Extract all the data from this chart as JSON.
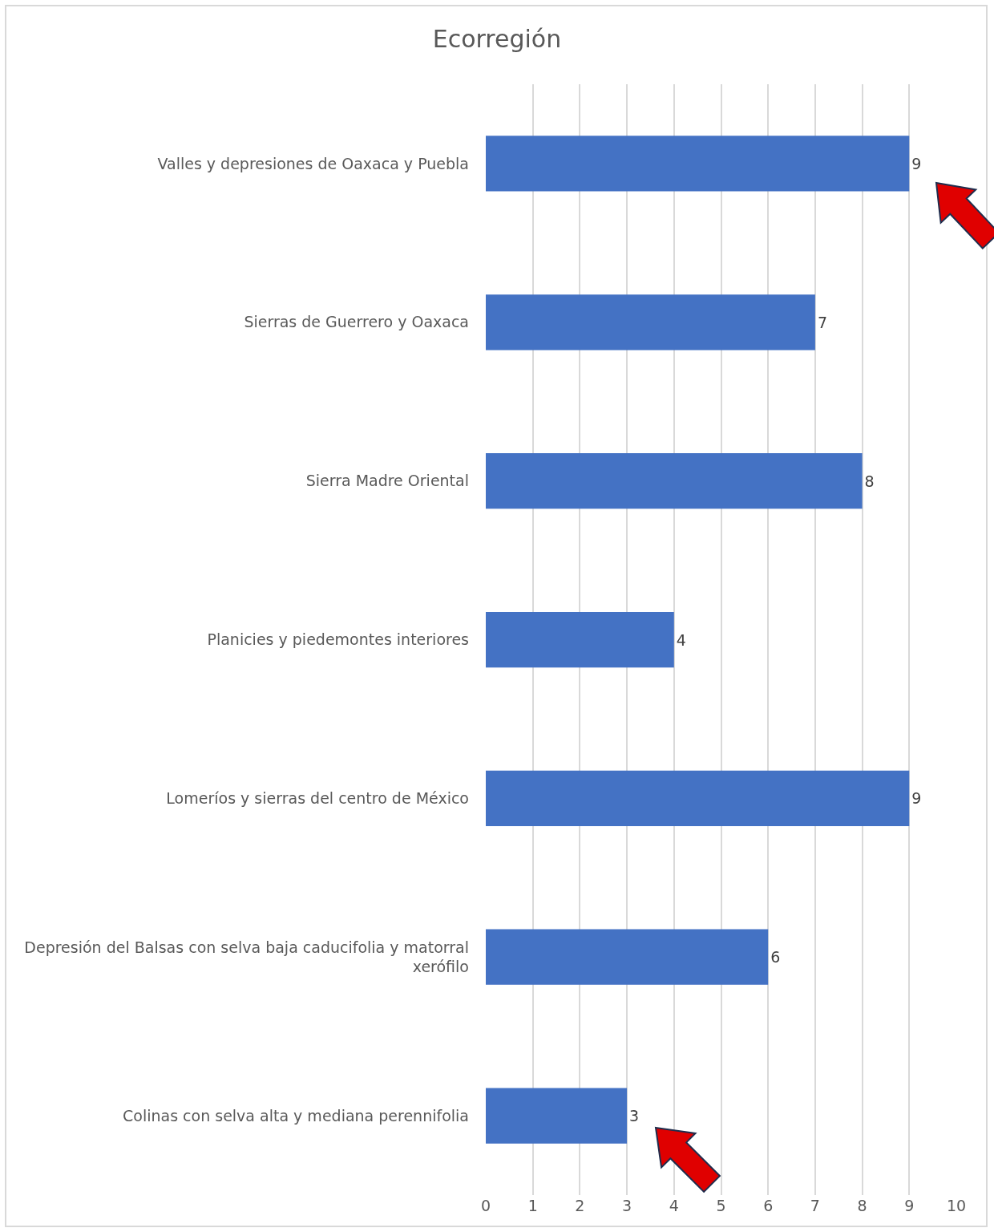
{
  "chart_data": {
    "type": "bar",
    "title": "Ecorregión",
    "orientation": "horizontal",
    "categories": [
      "Valles y depresiones de Oaxaca y Puebla",
      "Sierras de Guerrero y Oaxaca",
      "Sierra Madre Oriental",
      "Planicies y piedemontes interiores",
      "Lomeríos y sierras del centro de México",
      "Depresión del Balsas con selva baja caducifolia y matorral xerófilo",
      "Colinas con selva alta y mediana perennifolia"
    ],
    "values": [
      9,
      7,
      8,
      4,
      9,
      6,
      3
    ],
    "color": "#4472c4",
    "xlim": [
      0,
      10
    ],
    "xticks": [
      0,
      1,
      2,
      3,
      4,
      5,
      6,
      7,
      8,
      9,
      10
    ],
    "grid": "x",
    "data_labels": true
  }
}
